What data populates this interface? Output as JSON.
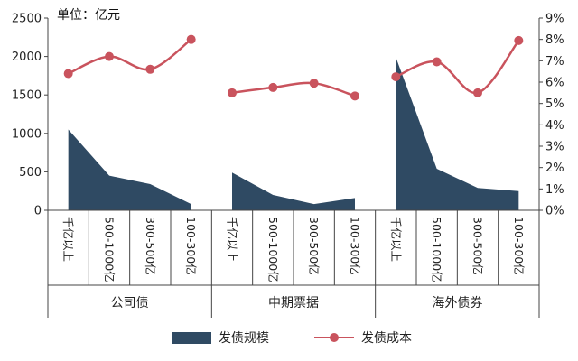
{
  "unit_label": "单位：亿元",
  "chart_data": {
    "type": "area+line",
    "left_axis": {
      "min": 0,
      "max": 2500,
      "step": 500,
      "ticks": [
        "0",
        "500",
        "1000",
        "1500",
        "2000",
        "2500"
      ]
    },
    "right_axis": {
      "min": 0,
      "max": 9,
      "step": 1,
      "ticks": [
        "0%",
        "1%",
        "2%",
        "3%",
        "4%",
        "5%",
        "6%",
        "7%",
        "8%",
        "9%"
      ]
    },
    "groups": [
      {
        "name": "公司债",
        "categories": [
          "千亿以上",
          "500-1000亿",
          "300-500亿",
          "100-300亿"
        ]
      },
      {
        "name": "中期票据",
        "categories": [
          "千亿以上",
          "500-1000亿",
          "300-500亿",
          "100-300亿"
        ]
      },
      {
        "name": "海外债券",
        "categories": [
          "千亿以上",
          "500-1000亿",
          "300-500亿",
          "100-300亿"
        ]
      }
    ],
    "series": [
      {
        "name": "发债规模",
        "type": "area",
        "axis": "left",
        "color": "#2f4a63",
        "values": [
          1050,
          450,
          340,
          80,
          490,
          200,
          80,
          160,
          1990,
          540,
          290,
          250
        ]
      },
      {
        "name": "发债成本",
        "type": "line",
        "axis": "right",
        "color": "#c9535d",
        "values": [
          6.4,
          7.2,
          6.6,
          8.0,
          5.5,
          5.75,
          5.95,
          5.35,
          6.25,
          6.95,
          5.5,
          7.95
        ]
      }
    ],
    "legend_position": "bottom"
  }
}
